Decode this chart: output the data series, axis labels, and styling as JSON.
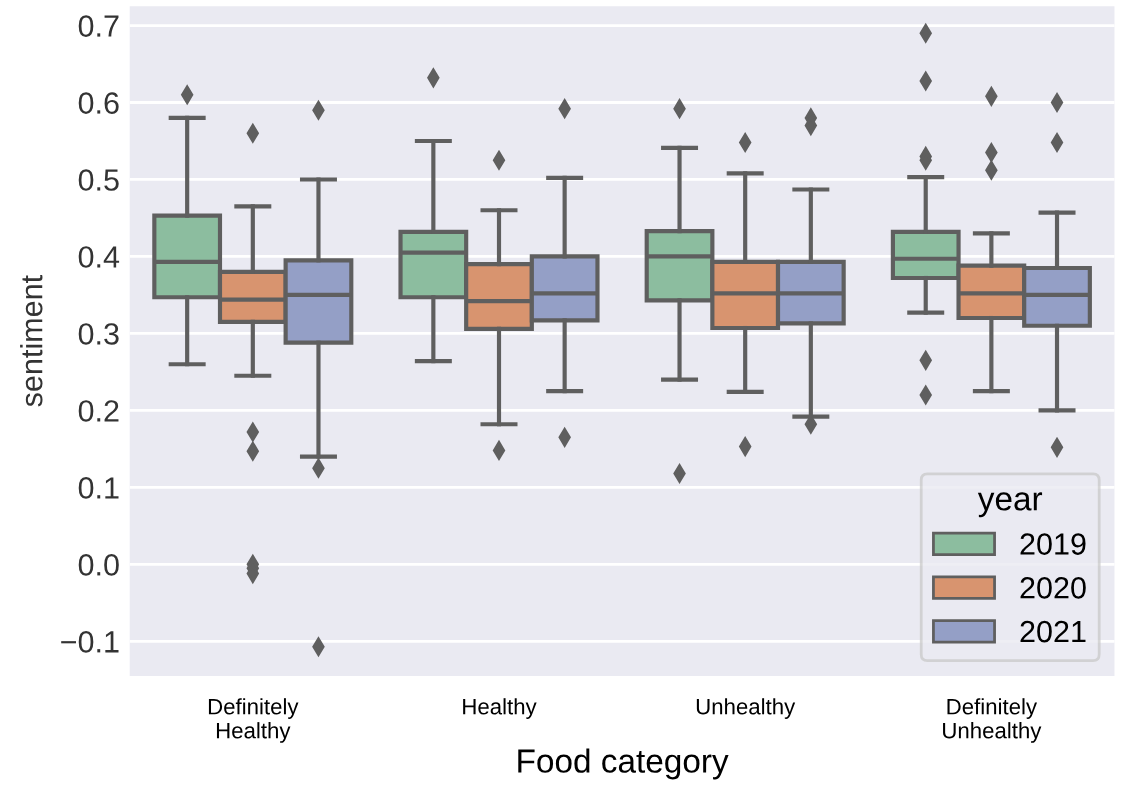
{
  "chart_data": {
    "type": "box",
    "xlabel": "Food category",
    "ylabel": "sentiment",
    "legend_title": "year",
    "categories": [
      "Definitely\nHealthy",
      "Healthy",
      "Unhealthy",
      "Definitely\nUnhealthy"
    ],
    "ylim": [
      -0.145,
      0.725
    ],
    "yticks": [
      {
        "value": -0.1,
        "label": "−0.1"
      },
      {
        "value": 0.0,
        "label": "0.0"
      },
      {
        "value": 0.1,
        "label": "0.1"
      },
      {
        "value": 0.2,
        "label": "0.2"
      },
      {
        "value": 0.3,
        "label": "0.3"
      },
      {
        "value": 0.4,
        "label": "0.4"
      },
      {
        "value": 0.5,
        "label": "0.5"
      },
      {
        "value": 0.6,
        "label": "0.6"
      },
      {
        "value": 0.7,
        "label": "0.7"
      }
    ],
    "grid": "y",
    "legend": "bottom right",
    "series": [
      {
        "name": "2019",
        "color": "#8cbd9f",
        "boxes": [
          {
            "low": 0.26,
            "q1": 0.347,
            "median": 0.393,
            "q3": 0.453,
            "high": 0.58,
            "outliers": [
              0.61
            ]
          },
          {
            "low": 0.264,
            "q1": 0.347,
            "median": 0.405,
            "q3": 0.432,
            "high": 0.55,
            "outliers": [
              0.632
            ]
          },
          {
            "low": 0.24,
            "q1": 0.343,
            "median": 0.4,
            "q3": 0.433,
            "high": 0.541,
            "outliers": [
              0.592,
              0.118
            ]
          },
          {
            "low": 0.327,
            "q1": 0.372,
            "median": 0.397,
            "q3": 0.432,
            "high": 0.503,
            "outliers": [
              0.69,
              0.628,
              0.53,
              0.525,
              0.265,
              0.22
            ]
          }
        ]
      },
      {
        "name": "2020",
        "color": "#d8946f",
        "boxes": [
          {
            "low": 0.245,
            "q1": 0.315,
            "median": 0.344,
            "q3": 0.38,
            "high": 0.465,
            "outliers": [
              0.56,
              0.172,
              0.147,
              0.0,
              -0.005,
              -0.012
            ]
          },
          {
            "low": 0.182,
            "q1": 0.306,
            "median": 0.342,
            "q3": 0.39,
            "high": 0.46,
            "outliers": [
              0.525,
              0.148
            ]
          },
          {
            "low": 0.224,
            "q1": 0.307,
            "median": 0.352,
            "q3": 0.393,
            "high": 0.508,
            "outliers": [
              0.548,
              0.153
            ]
          },
          {
            "low": 0.225,
            "q1": 0.32,
            "median": 0.352,
            "q3": 0.388,
            "high": 0.43,
            "outliers": [
              0.608,
              0.535,
              0.512
            ]
          }
        ]
      },
      {
        "name": "2021",
        "color": "#949fc6",
        "boxes": [
          {
            "low": 0.14,
            "q1": 0.288,
            "median": 0.35,
            "q3": 0.395,
            "high": 0.5,
            "outliers": [
              0.59,
              0.125,
              -0.107
            ]
          },
          {
            "low": 0.225,
            "q1": 0.317,
            "median": 0.352,
            "q3": 0.4,
            "high": 0.502,
            "outliers": [
              0.592,
              0.165
            ]
          },
          {
            "low": 0.192,
            "q1": 0.313,
            "median": 0.352,
            "q3": 0.393,
            "high": 0.487,
            "outliers": [
              0.58,
              0.57,
              0.182
            ]
          },
          {
            "low": 0.2,
            "q1": 0.31,
            "median": 0.35,
            "q3": 0.385,
            "high": 0.457,
            "outliers": [
              0.6,
              0.548,
              0.152
            ]
          }
        ]
      }
    ]
  }
}
